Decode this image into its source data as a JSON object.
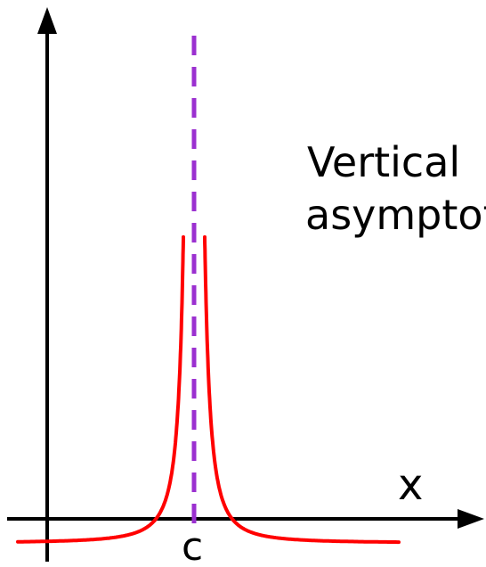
{
  "caption": {
    "line1": "Vertical",
    "line2": "asymptote"
  },
  "axis_labels": {
    "x": "x",
    "c": "c"
  },
  "colors": {
    "axes": "#000000",
    "curve": "#ff0000",
    "asymptote": "#9b30d0",
    "text": "#000000"
  }
}
